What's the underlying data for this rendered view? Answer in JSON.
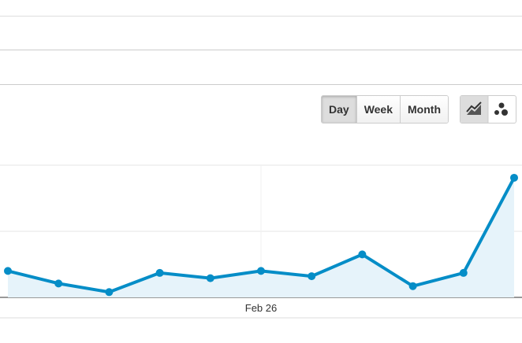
{
  "controls": {
    "range_buttons": [
      "Day",
      "Week",
      "Month"
    ],
    "selected": "Day"
  },
  "chart_data": {
    "type": "area",
    "categories": [
      null,
      null,
      null,
      null,
      null,
      "Feb 26",
      null,
      null,
      null,
      null,
      null
    ],
    "series": [
      {
        "color": "#058dc7",
        "values": [
          0.4,
          0.21,
          0.08,
          0.37,
          0.29,
          0.4,
          0.32,
          0.65,
          0.17,
          0.37,
          1.81
        ]
      }
    ],
    "ylim": [
      0,
      2
    ]
  }
}
